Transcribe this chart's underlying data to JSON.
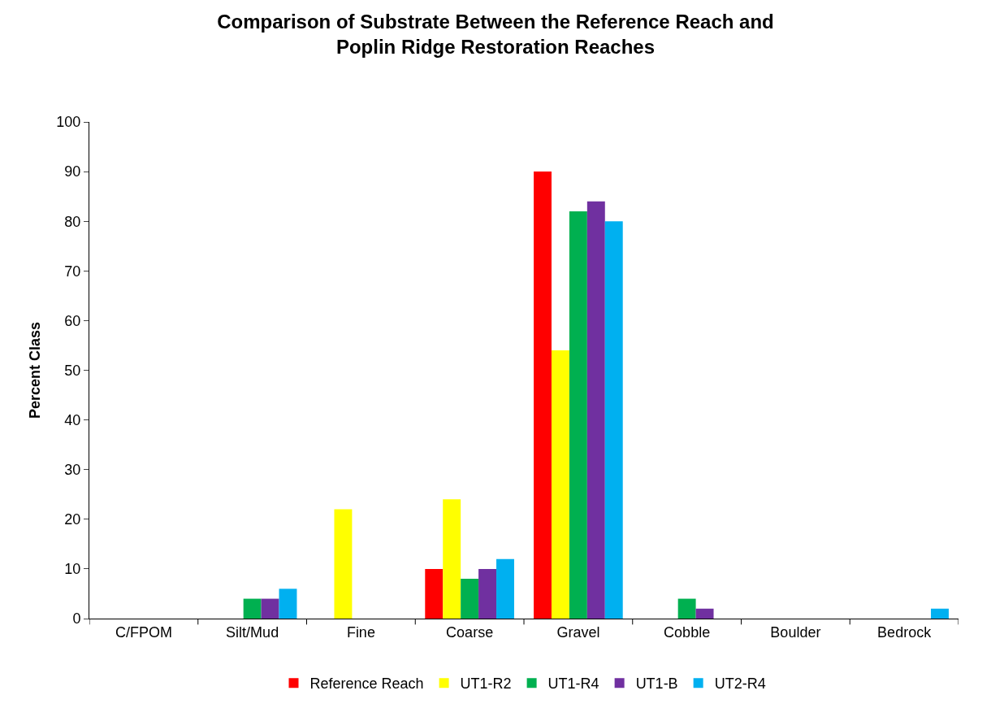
{
  "chart_data": {
    "type": "bar",
    "title": "Comparison of Substrate Between the Reference Reach and Poplin Ridge Restoration Reaches",
    "ylabel": "Percent Class",
    "categories": [
      "C/FPOM",
      "Silt/Mud",
      "Fine",
      "Coarse",
      "Gravel",
      "Cobble",
      "Boulder",
      "Bedrock"
    ],
    "series": [
      {
        "name": "Reference Reach",
        "color": "#ff0000",
        "values": [
          0,
          0,
          0,
          10,
          90,
          0,
          0,
          0
        ]
      },
      {
        "name": "UT1-R2",
        "color": "#ffff00",
        "values": [
          0,
          0,
          22,
          24,
          54,
          0,
          0,
          0
        ]
      },
      {
        "name": "UT1-R4",
        "color": "#00b050",
        "values": [
          0,
          4,
          0,
          8,
          82,
          4,
          0,
          0
        ]
      },
      {
        "name": "UT1-B",
        "color": "#7030a0",
        "values": [
          0,
          4,
          0,
          10,
          84,
          2,
          0,
          0
        ]
      },
      {
        "name": "UT2-R4",
        "color": "#00b0f0",
        "values": [
          0,
          6,
          0,
          12,
          80,
          0,
          0,
          2
        ]
      }
    ],
    "ylim": [
      0,
      100
    ],
    "yticks": [
      0,
      10,
      20,
      30,
      40,
      50,
      60,
      70,
      80,
      90,
      100
    ],
    "grid": false,
    "legend": "bottom"
  }
}
